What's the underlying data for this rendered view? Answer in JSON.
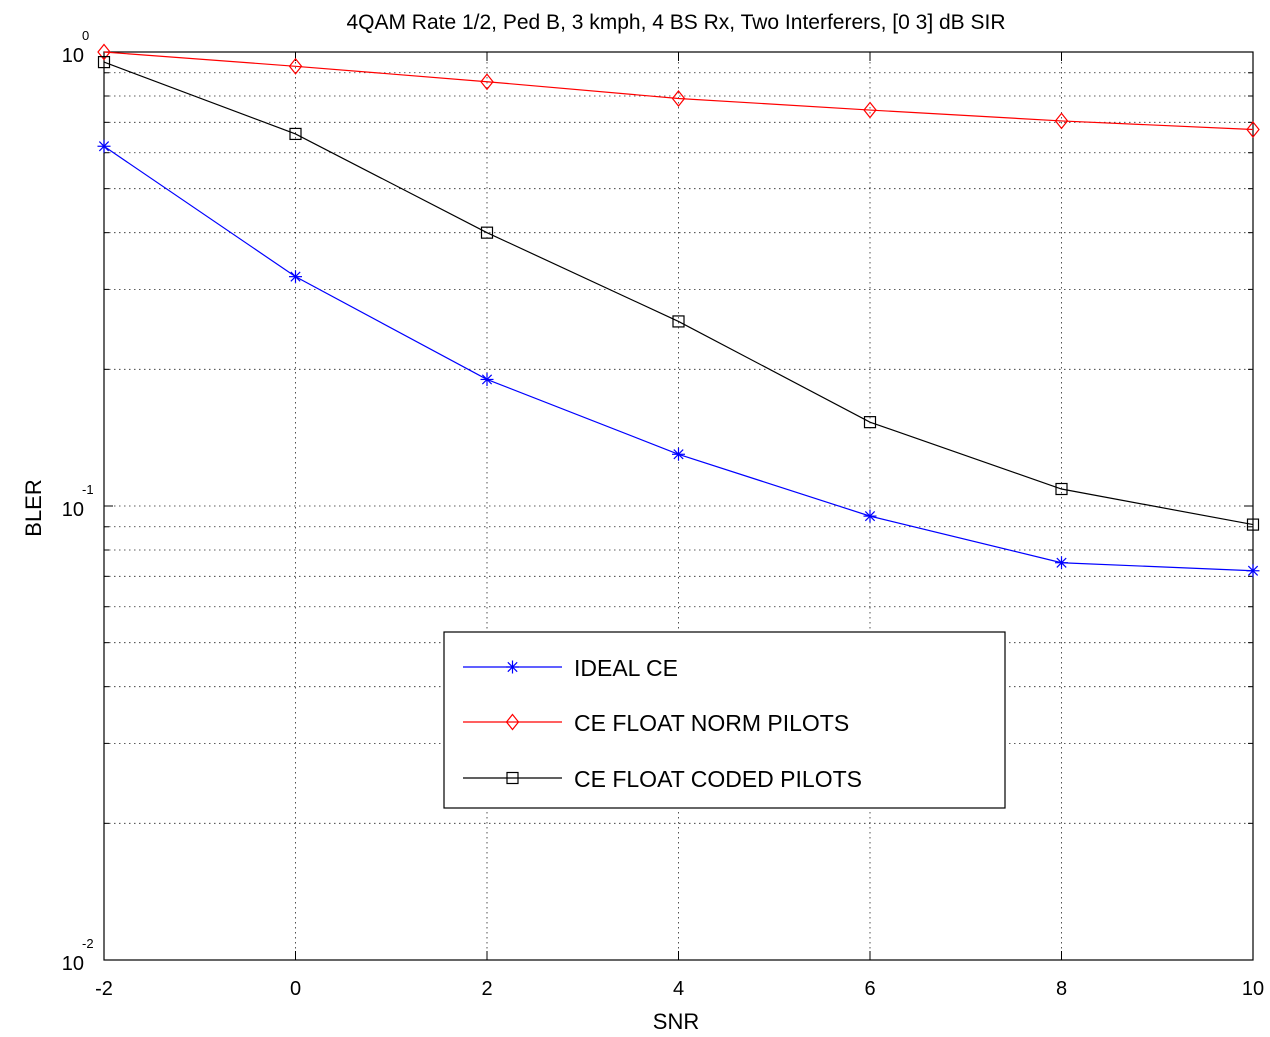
{
  "chart_data": {
    "type": "line",
    "title": "4QAM Rate 1/2, Ped B, 3 kmph, 4 BS Rx, Two Interferers, [0 3] dB SIR",
    "xlabel": "SNR",
    "ylabel": "BLER",
    "xlim": [
      -2,
      10
    ],
    "ylim": [
      0.01,
      1
    ],
    "yscale": "log",
    "grid": true,
    "legend_position": "lower-center",
    "x_ticks": [
      "-2",
      "0",
      "2",
      "4",
      "6",
      "8",
      "10"
    ],
    "y_ticks": [
      {
        "base": "10",
        "exp": "0"
      },
      {
        "base": "10",
        "exp": "-1"
      },
      {
        "base": "10",
        "exp": "-2"
      }
    ],
    "x": [
      -2,
      0,
      2,
      4,
      6,
      8,
      10
    ],
    "series": [
      {
        "name": "IDEAL CE",
        "color": "#0000ff",
        "marker": "star",
        "values": [
          0.62,
          0.32,
          0.19,
          0.13,
          0.095,
          0.075,
          0.072
        ]
      },
      {
        "name": "CE FLOAT NORM PILOTS",
        "color": "#ff0000",
        "marker": "diamond",
        "values": [
          1.0,
          0.93,
          0.86,
          0.79,
          0.745,
          0.705,
          0.675
        ]
      },
      {
        "name": "CE FLOAT CODED PILOTS",
        "color": "#000000",
        "marker": "square",
        "values": [
          0.95,
          0.66,
          0.4,
          0.255,
          0.153,
          0.109,
          0.091
        ]
      }
    ]
  }
}
